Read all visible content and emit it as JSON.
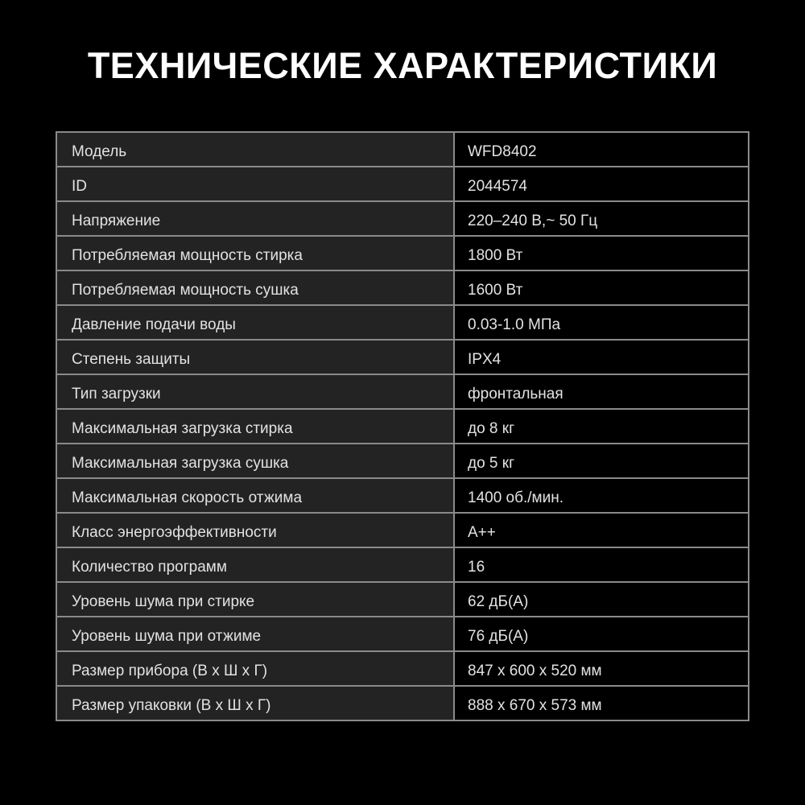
{
  "title": "ТЕХНИЧЕСКИЕ ХАРАКТЕРИСТИКИ",
  "rows": [
    {
      "label": "Модель",
      "value": "WFD8402"
    },
    {
      "label": "ID",
      "value": "2044574"
    },
    {
      "label": "Напряжение",
      "value": "220–240 В,~ 50 Гц"
    },
    {
      "label": "Потребляемая мощность стирка",
      "value": "1800 Вт"
    },
    {
      "label": "Потребляемая мощность сушка",
      "value": "1600 Вт"
    },
    {
      "label": "Давление подачи воды",
      "value": "0.03-1.0 МПа"
    },
    {
      "label": "Степень защиты",
      "value": "IPX4"
    },
    {
      "label": "Тип загрузки",
      "value": "фронтальная"
    },
    {
      "label": "Максимальная загрузка стирка",
      "value": "до 8 кг"
    },
    {
      "label": "Максимальная загрузка сушка",
      "value": "до 5 кг"
    },
    {
      "label": "Максимальная скорость отжима",
      "value": "1400 об./мин."
    },
    {
      "label": "Класс энергоэффективности",
      "value": "A++"
    },
    {
      "label": "Количество программ",
      "value": "16"
    },
    {
      "label": "Уровень шума при стирке",
      "value": "62 дБ(А)"
    },
    {
      "label": "Уровень шума при отжиме",
      "value": "76 дБ(А)"
    },
    {
      "label": "Размер прибора (В х Ш х Г)",
      "value": "847 x 600 x 520 мм"
    },
    {
      "label": "Размер упаковки (В х Ш х Г)",
      "value": "888 x 670 x 573 мм"
    }
  ]
}
